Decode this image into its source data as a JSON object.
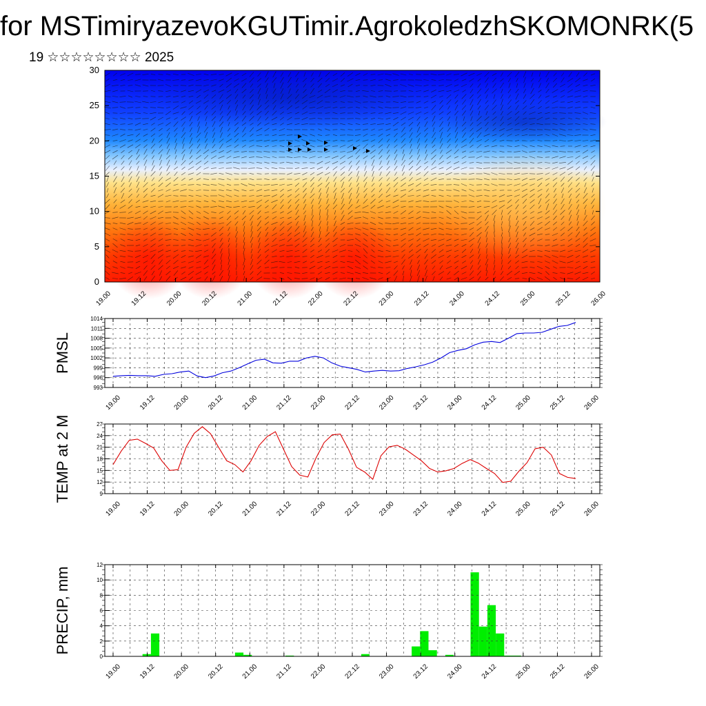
{
  "header": {
    "title": "for MSTimiryazevoKGUTimir.AgrokoledzhSKOMONRK(5",
    "subtitle": "19 ☆☆☆☆☆☆☆☆ 2025"
  },
  "colors": {
    "pmsl_line": "#0000dd",
    "temp_line": "#dd0000",
    "precip_bar": "#00ee00",
    "field_high": "#ff1a00",
    "field_low": "#0000ff"
  },
  "chart_data": [
    {
      "type": "heatmap",
      "description_ylabel": "",
      "x_tick_labels": [
        "19.00",
        "19.12",
        "20.00",
        "20.12",
        "21.00",
        "21.12",
        "22.00",
        "22.12",
        "23.00",
        "23.12",
        "24.00",
        "24.12",
        "25.00",
        "25.12",
        "26.00"
      ],
      "y_tick_labels": [
        "0",
        "5",
        "10",
        "15",
        "20",
        "25",
        "30"
      ],
      "ylim": [
        0,
        30
      ],
      "colormap": "red-orange-yellow-white-lightblue-blue (high at bottom, low at top)",
      "overlay": "wind vectors"
    },
    {
      "type": "line",
      "ylabel": "PMSL",
      "ylim": [
        993,
        1014
      ],
      "y_tick_labels": [
        "993",
        "996",
        "999",
        "1002",
        "1005",
        "1008",
        "1011",
        "1014"
      ],
      "x_tick_labels": [
        "19.00",
        "19.12",
        "20.00",
        "20.12",
        "21.00",
        "21.12",
        "22.00",
        "22.12",
        "23.00",
        "23.12",
        "24.00",
        "24.12",
        "25.00",
        "25.12",
        "26.00"
      ],
      "series": [
        {
          "values": [
            996.4,
            996.6,
            996.7,
            996.6,
            996.6,
            996.4,
            997.0,
            997.2,
            997.7,
            998.0,
            996.5,
            996.0,
            996.5,
            997.5,
            998.0,
            999.0,
            1000.2,
            1001.3,
            1001.6,
            1000.5,
            1000.4,
            1001.0,
            1001.0,
            1002.0,
            1002.5,
            1002.0,
            1000.5,
            999.5,
            999.0,
            998.5,
            997.7,
            998.0,
            998.2,
            998.0,
            998.1,
            998.8,
            999.3,
            999.9,
            1000.7,
            1002.0,
            1003.6,
            1004.3,
            1004.8,
            1006.0,
            1006.8,
            1007.0,
            1006.7,
            1008.0,
            1009.4,
            1009.6,
            1009.6,
            1009.8,
            1010.7,
            1011.6,
            1011.9,
            1012.8
          ]
        }
      ],
      "grid": true
    },
    {
      "type": "line",
      "ylabel": "TEMP at 2 M",
      "ylim": [
        9,
        27
      ],
      "y_tick_labels": [
        "9",
        "12",
        "15",
        "18",
        "21",
        "24",
        "27"
      ],
      "x_tick_labels": [
        "19.00",
        "19.12",
        "20.00",
        "20.12",
        "21.00",
        "21.12",
        "22.00",
        "22.12",
        "23.00",
        "23.12",
        "24.00",
        "24.12",
        "25.00",
        "25.12",
        "26.00"
      ],
      "series": [
        {
          "values": [
            16.5,
            20.0,
            22.8,
            23.1,
            22.0,
            20.8,
            17.5,
            15.0,
            15.2,
            21.0,
            24.6,
            26.3,
            24.5,
            21.0,
            17.5,
            16.5,
            14.6,
            17.5,
            21.5,
            23.8,
            25.0,
            20.5,
            16.0,
            13.8,
            13.3,
            18.2,
            22.2,
            24.2,
            24.4,
            20.5,
            15.8,
            14.6,
            12.7,
            18.8,
            21.1,
            21.5,
            20.5,
            19.0,
            17.5,
            15.5,
            14.6,
            14.9,
            15.5,
            16.8,
            17.8,
            16.9,
            15.5,
            14.2,
            11.9,
            12.2,
            14.8,
            17.0,
            20.6,
            21.0,
            19.0,
            14.2,
            13.2,
            12.9
          ]
        }
      ],
      "grid": true
    },
    {
      "type": "bar",
      "ylabel": "PRECIP, mm",
      "ylim": [
        0,
        12
      ],
      "y_tick_labels": [
        "0",
        "2",
        "4",
        "6",
        "8",
        "10",
        "12"
      ],
      "x_tick_labels": [
        "19.00",
        "19.12",
        "20.00",
        "20.12",
        "21.00",
        "21.12",
        "22.00",
        "22.12",
        "23.00",
        "23.12",
        "24.00",
        "24.12",
        "25.00",
        "25.12",
        "26.00"
      ],
      "values": [
        0,
        0,
        0,
        0,
        0.3,
        3.0,
        0,
        0,
        0,
        0,
        0,
        0,
        0,
        0,
        0,
        0.5,
        0.2,
        0,
        0,
        0,
        0,
        0.1,
        0,
        0,
        0,
        0,
        0,
        0,
        0,
        0,
        0.3,
        0,
        0,
        0,
        0,
        0,
        1.3,
        3.3,
        0.8,
        0,
        0.2,
        0,
        0,
        11.0,
        3.9,
        6.7,
        3.0,
        0.1,
        0.1,
        0,
        0,
        0,
        0,
        0,
        0,
        0
      ],
      "grid": true
    }
  ]
}
